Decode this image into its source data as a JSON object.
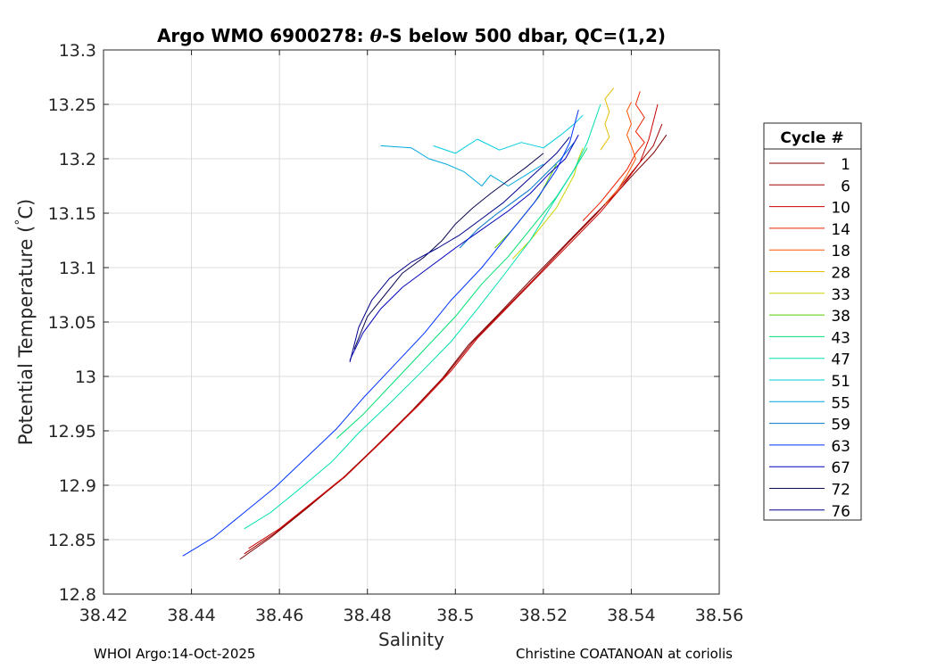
{
  "chart_data": {
    "type": "line",
    "title": "Argo WMO 6900278: θ-S below 500 dbar,  QC=(1,2)",
    "title_parts": {
      "prefix": "Argo WMO 6900278: ",
      "symbol": "θ",
      "suffix": "-S below 500 dbar,  QC=(1,2)"
    },
    "xlabel": "Salinity",
    "ylabel": "Potential Temperature (°C)",
    "ylabel_parts": {
      "main": "Potential Temperature (",
      "degree": "°",
      "unit": "C)"
    },
    "xlim": [
      38.42,
      38.56
    ],
    "ylim": [
      12.8,
      13.3
    ],
    "xticks": [
      38.42,
      38.44,
      38.46,
      38.48,
      38.5,
      38.52,
      38.54,
      38.56
    ],
    "xtick_labels": [
      "38.42",
      "38.44",
      "38.46",
      "38.48",
      "38.5",
      "38.52",
      "38.54",
      "38.56"
    ],
    "yticks": [
      12.8,
      12.85,
      12.9,
      12.95,
      13.0,
      13.05,
      13.1,
      13.15,
      13.2,
      13.25,
      13.3
    ],
    "ytick_labels": [
      "12.8",
      "12.85",
      "12.9",
      "12.95",
      "13",
      "13.05",
      "13.1",
      "13.15",
      "13.2",
      "13.25",
      "13.3"
    ],
    "grid": true,
    "legend": {
      "title": "Cycle #",
      "placement": "outside-right"
    },
    "series": [
      {
        "name": "1",
        "color": "#800000",
        "points": [
          [
            38.451,
            12.832
          ],
          [
            38.458,
            12.852
          ],
          [
            38.466,
            12.878
          ],
          [
            38.474,
            12.905
          ],
          [
            38.482,
            12.936
          ],
          [
            38.49,
            12.968
          ],
          [
            38.497,
            12.998
          ],
          [
            38.503,
            13.029
          ],
          [
            38.51,
            13.058
          ],
          [
            38.517,
            13.088
          ],
          [
            38.524,
            13.117
          ],
          [
            38.531,
            13.146
          ],
          [
            38.537,
            13.17
          ],
          [
            38.541,
            13.188
          ],
          [
            38.545,
            13.205
          ],
          [
            38.548,
            13.222
          ]
        ]
      },
      {
        "name": "6",
        "color": "#a00000",
        "points": [
          [
            38.452,
            12.837
          ],
          [
            38.459,
            12.856
          ],
          [
            38.467,
            12.882
          ],
          [
            38.475,
            12.908
          ],
          [
            38.483,
            12.94
          ],
          [
            38.491,
            12.972
          ],
          [
            38.498,
            13.002
          ],
          [
            38.504,
            13.032
          ],
          [
            38.511,
            13.061
          ],
          [
            38.518,
            13.09
          ],
          [
            38.525,
            13.12
          ],
          [
            38.532,
            13.149
          ],
          [
            38.537,
            13.172
          ],
          [
            38.541,
            13.192
          ],
          [
            38.545,
            13.212
          ],
          [
            38.547,
            13.232
          ]
        ]
      },
      {
        "name": "10",
        "color": "#cc0000",
        "points": [
          [
            38.453,
            12.842
          ],
          [
            38.46,
            12.86
          ],
          [
            38.468,
            12.886
          ],
          [
            38.476,
            12.912
          ],
          [
            38.484,
            12.943
          ],
          [
            38.492,
            12.975
          ],
          [
            38.499,
            13.005
          ],
          [
            38.505,
            13.035
          ],
          [
            38.512,
            13.064
          ],
          [
            38.519,
            13.093
          ],
          [
            38.526,
            13.122
          ],
          [
            38.533,
            13.151
          ],
          [
            38.538,
            13.175
          ],
          [
            38.542,
            13.197
          ],
          [
            38.544,
            13.218
          ],
          [
            38.546,
            13.25
          ]
        ]
      },
      {
        "name": "14",
        "color": "#ee2200",
        "points": [
          [
            38.529,
            13.143
          ],
          [
            38.533,
            13.16
          ],
          [
            38.536,
            13.175
          ],
          [
            38.539,
            13.19
          ],
          [
            38.541,
            13.205
          ],
          [
            38.543,
            13.215
          ],
          [
            38.541,
            13.225
          ],
          [
            38.543,
            13.238
          ],
          [
            38.541,
            13.25
          ],
          [
            38.542,
            13.262
          ]
        ]
      },
      {
        "name": "18",
        "color": "#ff5500",
        "points": [
          [
            38.534,
            13.158
          ],
          [
            38.537,
            13.172
          ],
          [
            38.539,
            13.185
          ],
          [
            38.541,
            13.2
          ],
          [
            38.54,
            13.212
          ],
          [
            38.539,
            13.222
          ],
          [
            38.54,
            13.232
          ],
          [
            38.539,
            13.244
          ],
          [
            38.54,
            13.252
          ]
        ]
      },
      {
        "name": "28",
        "color": "#e6bf00",
        "points": [
          [
            38.533,
            13.208
          ],
          [
            38.535,
            13.22
          ],
          [
            38.534,
            13.232
          ],
          [
            38.535,
            13.243
          ],
          [
            38.534,
            13.255
          ],
          [
            38.536,
            13.265
          ]
        ]
      },
      {
        "name": "33",
        "color": "#c8d600",
        "points": [
          [
            38.513,
            13.108
          ],
          [
            38.517,
            13.125
          ],
          [
            38.52,
            13.14
          ],
          [
            38.523,
            13.155
          ],
          [
            38.525,
            13.17
          ],
          [
            38.527,
            13.185
          ],
          [
            38.528,
            13.2
          ],
          [
            38.529,
            13.21
          ]
        ]
      },
      {
        "name": "38",
        "color": "#55cc00",
        "points": [
          [
            38.509,
            13.118
          ],
          [
            38.513,
            13.135
          ],
          [
            38.516,
            13.15
          ],
          [
            38.519,
            13.165
          ],
          [
            38.521,
            13.18
          ],
          [
            38.523,
            13.195
          ]
        ]
      },
      {
        "name": "43",
        "color": "#00e070",
        "points": [
          [
            38.473,
            12.943
          ],
          [
            38.479,
            12.965
          ],
          [
            38.486,
            12.995
          ],
          [
            38.493,
            13.025
          ],
          [
            38.5,
            13.055
          ],
          [
            38.506,
            13.085
          ],
          [
            38.512,
            13.11
          ],
          [
            38.518,
            13.14
          ],
          [
            38.523,
            13.165
          ],
          [
            38.527,
            13.19
          ],
          [
            38.53,
            13.21
          ]
        ]
      },
      {
        "name": "47",
        "color": "#00e0b0",
        "points": [
          [
            38.452,
            12.86
          ],
          [
            38.458,
            12.875
          ],
          [
            38.465,
            12.898
          ],
          [
            38.472,
            12.922
          ],
          [
            38.478,
            12.948
          ],
          [
            38.485,
            12.975
          ],
          [
            38.492,
            13.003
          ],
          [
            38.499,
            13.032
          ],
          [
            38.505,
            13.062
          ],
          [
            38.511,
            13.093
          ],
          [
            38.517,
            13.125
          ],
          [
            38.522,
            13.158
          ],
          [
            38.527,
            13.19
          ],
          [
            38.53,
            13.215
          ],
          [
            38.533,
            13.25
          ]
        ]
      },
      {
        "name": "51",
        "color": "#00ccdd",
        "points": [
          [
            38.495,
            13.212
          ],
          [
            38.5,
            13.205
          ],
          [
            38.505,
            13.218
          ],
          [
            38.51,
            13.208
          ],
          [
            38.515,
            13.215
          ],
          [
            38.52,
            13.21
          ],
          [
            38.524,
            13.222
          ],
          [
            38.527,
            13.232
          ],
          [
            38.529,
            13.24
          ]
        ]
      },
      {
        "name": "55",
        "color": "#00a8e0",
        "points": [
          [
            38.483,
            13.212
          ],
          [
            38.49,
            13.21
          ],
          [
            38.494,
            13.2
          ],
          [
            38.498,
            13.195
          ],
          [
            38.502,
            13.188
          ],
          [
            38.506,
            13.175
          ],
          [
            38.508,
            13.185
          ],
          [
            38.512,
            13.175
          ],
          [
            38.516,
            13.185
          ],
          [
            38.52,
            13.195
          ]
        ]
      },
      {
        "name": "59",
        "color": "#0077cc",
        "points": [
          [
            38.501,
            13.118
          ],
          [
            38.505,
            13.135
          ],
          [
            38.509,
            13.148
          ],
          [
            38.513,
            13.16
          ],
          [
            38.517,
            13.172
          ],
          [
            38.521,
            13.188
          ],
          [
            38.524,
            13.2
          ],
          [
            38.527,
            13.215
          ]
        ]
      },
      {
        "name": "63",
        "color": "#0033ff",
        "points": [
          [
            38.438,
            12.835
          ],
          [
            38.445,
            12.852
          ],
          [
            38.452,
            12.875
          ],
          [
            38.459,
            12.898
          ],
          [
            38.466,
            12.925
          ],
          [
            38.473,
            12.952
          ],
          [
            38.479,
            12.98
          ],
          [
            38.486,
            13.01
          ],
          [
            38.493,
            13.04
          ],
          [
            38.499,
            13.07
          ],
          [
            38.506,
            13.1
          ],
          [
            38.512,
            13.13
          ],
          [
            38.518,
            13.16
          ],
          [
            38.523,
            13.19
          ],
          [
            38.526,
            13.215
          ],
          [
            38.528,
            13.245
          ]
        ]
      },
      {
        "name": "67",
        "color": "#0000bb",
        "points": [
          [
            38.476,
            13.015
          ],
          [
            38.479,
            13.04
          ],
          [
            38.483,
            13.062
          ],
          [
            38.488,
            13.082
          ],
          [
            38.494,
            13.1
          ],
          [
            38.5,
            13.118
          ],
          [
            38.506,
            13.135
          ],
          [
            38.512,
            13.152
          ],
          [
            38.517,
            13.168
          ],
          [
            38.521,
            13.185
          ],
          [
            38.525,
            13.2
          ],
          [
            38.528,
            13.222
          ]
        ]
      },
      {
        "name": "72",
        "color": "#0a0a50",
        "points": [
          [
            38.477,
            13.025
          ],
          [
            38.48,
            13.055
          ],
          [
            38.484,
            13.075
          ],
          [
            38.488,
            13.095
          ],
          [
            38.493,
            13.11
          ],
          [
            38.497,
            13.125
          ],
          [
            38.5,
            13.14
          ],
          [
            38.504,
            13.155
          ],
          [
            38.508,
            13.168
          ],
          [
            38.512,
            13.18
          ],
          [
            38.516,
            13.192
          ],
          [
            38.52,
            13.205
          ]
        ]
      },
      {
        "name": "76",
        "color": "#00008b",
        "points": [
          [
            38.476,
            13.013
          ],
          [
            38.478,
            13.045
          ],
          [
            38.481,
            13.07
          ],
          [
            38.485,
            13.09
          ],
          [
            38.49,
            13.105
          ],
          [
            38.496,
            13.118
          ],
          [
            38.501,
            13.13
          ],
          [
            38.506,
            13.145
          ],
          [
            38.511,
            13.16
          ],
          [
            38.515,
            13.175
          ],
          [
            38.519,
            13.19
          ],
          [
            38.523,
            13.205
          ],
          [
            38.526,
            13.22
          ]
        ]
      }
    ]
  },
  "footer": {
    "left": "WHOI Argo:14-Oct-2025",
    "right": "Christine COATANOAN at coriolis"
  }
}
